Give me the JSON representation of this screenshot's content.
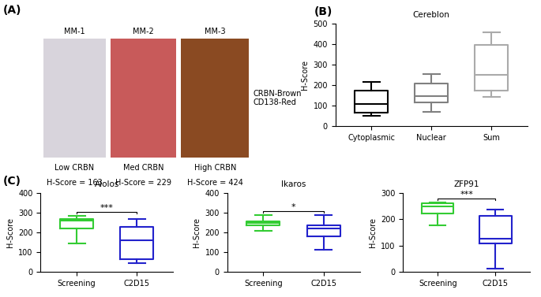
{
  "images": {
    "panel_label": "(A)",
    "legend_lines": [
      "CRBN-Brown",
      "CD138-Red"
    ],
    "panels": [
      {
        "title": "MM-1",
        "caption": "Low CRBN",
        "score_label": "H-Score = 163",
        "color": "#d8d4dc"
      },
      {
        "title": "MM-2",
        "caption": "Med CRBN",
        "score_label": "H-Score = 229",
        "color": "#c85a5a"
      },
      {
        "title": "MM-3",
        "caption": "High CRBN",
        "score_label": "H-Score = 424",
        "color": "#8a4a22"
      }
    ]
  },
  "chart_data": [
    {
      "type": "box",
      "panel_label": "(B)",
      "title": "Cereblon",
      "y_label": "H-Score",
      "categories": [
        "Cytoplasmic",
        "Nuclear",
        "Sum"
      ],
      "colors": [
        "#000000",
        "#808080",
        "#aaaaaa"
      ],
      "boxes": [
        {
          "min": 50,
          "q1": 65,
          "median": 110,
          "q3": 175,
          "max": 218
        },
        {
          "min": 70,
          "q1": 115,
          "median": 148,
          "q3": 210,
          "max": 255
        },
        {
          "min": 145,
          "q1": 175,
          "median": 250,
          "q3": 395,
          "max": 458
        }
      ],
      "ylim": [
        0,
        500
      ],
      "yticks": [
        0,
        100,
        200,
        300,
        400,
        500
      ]
    },
    {
      "type": "box",
      "panel_label": "(C)",
      "title": "Aiolos",
      "y_label": "H-Score",
      "categories": [
        "Screening",
        "C2D15"
      ],
      "colors": [
        "#33cc33",
        "#2222cc"
      ],
      "boxes": [
        {
          "min": 145,
          "q1": 222,
          "median": 262,
          "q3": 270,
          "max": 285
        },
        {
          "min": 45,
          "q1": 65,
          "median": 160,
          "q3": 228,
          "max": 270
        }
      ],
      "annotation": "***",
      "ylim": [
        0,
        400
      ],
      "yticks": [
        0,
        100,
        200,
        300,
        400
      ]
    },
    {
      "type": "box",
      "title": "Ikaros",
      "y_label": "H-Score",
      "categories": [
        "Screening",
        "C2D15"
      ],
      "colors": [
        "#33cc33",
        "#2222cc"
      ],
      "boxes": [
        {
          "min": 210,
          "q1": 238,
          "median": 248,
          "q3": 258,
          "max": 288
        },
        {
          "min": 113,
          "q1": 178,
          "median": 220,
          "q3": 238,
          "max": 288
        }
      ],
      "annotation": "*",
      "ylim": [
        0,
        400
      ],
      "yticks": [
        0,
        100,
        200,
        300,
        400
      ]
    },
    {
      "type": "box",
      "title": "ZFP91",
      "y_label": "H-Score",
      "categories": [
        "Screening",
        "C2D15"
      ],
      "colors": [
        "#33cc33",
        "#2222cc"
      ],
      "boxes": [
        {
          "min": 178,
          "q1": 222,
          "median": 250,
          "q3": 260,
          "max": 265
        },
        {
          "min": 12,
          "q1": 108,
          "median": 125,
          "q3": 213,
          "max": 238
        }
      ],
      "annotation": "***",
      "ylim": [
        0,
        300
      ],
      "yticks": [
        0,
        100,
        200,
        300
      ]
    }
  ]
}
